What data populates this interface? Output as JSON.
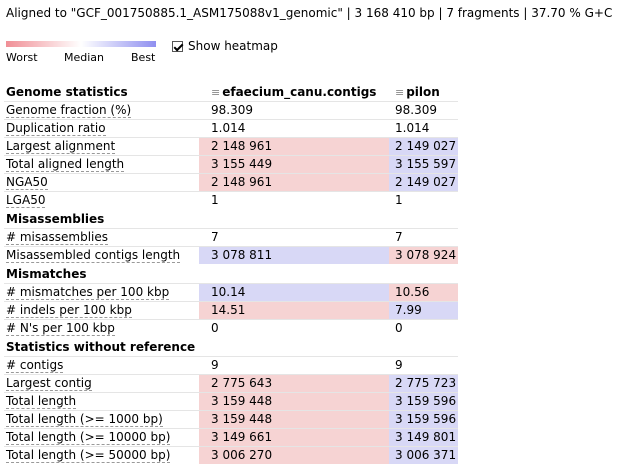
{
  "header": {
    "text_prefix": "Aligned to \"GCF_001750885.1_ASM175088v1_genomic\" | 3 168 410 bp | 7 fragments | 37.70 % G+C"
  },
  "legend": {
    "worst": "Worst",
    "median": "Median",
    "best": "Best",
    "colors": {
      "worst": "#f08f96",
      "best": "#8f8ff0"
    }
  },
  "heatmap_toggle": {
    "label": "Show heatmap",
    "checked": true
  },
  "table": {
    "col1": "efaecium_canu.contigs",
    "col2": "pilon",
    "sections": [
      {
        "title": "Genome statistics",
        "rows": [
          [
            "Genome fraction (%)",
            "98.309",
            "98.309",
            "",
            ""
          ],
          [
            "Duplication ratio",
            "1.014",
            "1.014",
            "",
            ""
          ],
          [
            "Largest alignment",
            "2 148 961",
            "2 149 027",
            "red",
            "blue"
          ],
          [
            "Total aligned length",
            "3 155 449",
            "3 155 597",
            "red",
            "blue"
          ],
          [
            "NGA50",
            "2 148 961",
            "2 149 027",
            "red",
            "blue"
          ],
          [
            "LGA50",
            "1",
            "1",
            "",
            ""
          ]
        ]
      },
      {
        "title": "Misassemblies",
        "rows": [
          [
            "# misassemblies",
            "7",
            "7",
            "",
            ""
          ],
          [
            "Misassembled contigs length",
            "3 078 811",
            "3 078 924",
            "blue",
            "red"
          ]
        ]
      },
      {
        "title": "Mismatches",
        "rows": [
          [
            "# mismatches per 100 kbp",
            "10.14",
            "10.56",
            "blue",
            "red"
          ],
          [
            "# indels per 100 kbp",
            "14.51",
            "7.99",
            "red",
            "blue"
          ],
          [
            "# N's per 100 kbp",
            "0",
            "0",
            "",
            ""
          ]
        ]
      },
      {
        "title": "Statistics without reference",
        "rows": [
          [
            "# contigs",
            "9",
            "9",
            "",
            ""
          ],
          [
            "Largest contig",
            "2 775 643",
            "2 775 723",
            "red",
            "blue"
          ],
          [
            "Total length",
            "3 159 448",
            "3 159 596",
            "red",
            "blue"
          ],
          [
            "Total length (>= 1000 bp)",
            "3 159 448",
            "3 159 596",
            "red",
            "blue"
          ],
          [
            "Total length (>= 10000 bp)",
            "3 149 661",
            "3 149 801",
            "red",
            "blue"
          ],
          [
            "Total length (>= 50000 bp)",
            "3 006 270",
            "3 006 371",
            "red",
            "blue"
          ]
        ]
      }
    ]
  }
}
